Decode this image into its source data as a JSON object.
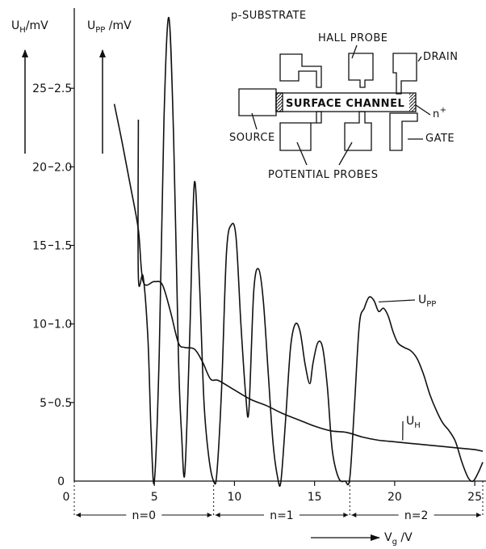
{
  "chart_data": {
    "type": "line",
    "xlabel": "V",
    "xlabel_sub": "g",
    "xlabel_unit": " /V",
    "ylabel_left": "U",
    "ylabel_left_sub": "H",
    "ylabel_left_unit": "/mV",
    "ylabel_right": "U",
    "ylabel_right_sub": "PP",
    "ylabel_right_unit": " /mV",
    "x_ticks": [
      "0",
      "5",
      "10",
      "15",
      "20",
      "25"
    ],
    "y_ticks_uh": [
      "0",
      "5",
      "10",
      "15",
      "20",
      "25"
    ],
    "y_ticks_upp": [
      "0.5",
      "1.0",
      "1.5",
      "2.0",
      "2.5"
    ],
    "xlim": [
      0,
      25.5
    ],
    "ylim_uh": [
      0,
      30
    ],
    "ylim_upp": [
      0,
      3.0
    ],
    "grid": false,
    "landau_levels": [
      {
        "label": "n=0",
        "x_range": [
          0,
          8.7
        ]
      },
      {
        "label": "n=1",
        "x_range": [
          8.7,
          17.2
        ]
      },
      {
        "label": "n=2",
        "x_range": [
          17.2,
          25.5
        ]
      }
    ],
    "series": [
      {
        "name": "U",
        "name_sub": "H",
        "axis": "UH (mV)",
        "x": [
          2.5,
          3.0,
          3.5,
          4.0,
          4.3,
          5.0,
          5.5,
          6.0,
          6.5,
          6.9,
          7.5,
          8.0,
          8.5,
          9.0,
          10.0,
          11.0,
          12.0,
          13.0,
          14.0,
          15.0,
          16.0,
          17.0,
          18.0,
          19.0,
          20.0,
          21.0,
          22.0,
          23.0,
          24.0,
          25.0,
          25.5
        ],
        "values": [
          24.0,
          21.5,
          18.8,
          16.0,
          12.7,
          12.7,
          12.5,
          10.8,
          8.8,
          8.5,
          8.4,
          7.6,
          6.5,
          6.4,
          5.8,
          5.2,
          4.8,
          4.3,
          3.9,
          3.5,
          3.2,
          3.1,
          2.8,
          2.6,
          2.5,
          2.4,
          2.3,
          2.2,
          2.1,
          2.0,
          1.9
        ]
      },
      {
        "name": "U",
        "name_sub": "PP",
        "axis": "UPP (mV)",
        "x": [
          4.0,
          4.0,
          4.3,
          4.6,
          4.8,
          5.0,
          5.3,
          5.6,
          5.9,
          6.2,
          6.5,
          6.7,
          6.9,
          7.2,
          7.5,
          7.8,
          8.1,
          8.4,
          8.7,
          8.9,
          9.2,
          9.5,
          9.8,
          10.1,
          10.4,
          10.7,
          10.9,
          11.2,
          11.5,
          11.8,
          12.1,
          12.4,
          12.7,
          12.9,
          13.2,
          13.5,
          13.8,
          14.1,
          14.4,
          14.7,
          14.9,
          15.2,
          15.5,
          15.8,
          16.1,
          16.5,
          16.9,
          17.2,
          17.5,
          17.8,
          18.1,
          18.4,
          18.7,
          19.0,
          19.3,
          19.6,
          19.9,
          20.2,
          20.6,
          21.0,
          21.4,
          21.8,
          22.2,
          22.6,
          23.0,
          23.4,
          23.8,
          24.2,
          24.6,
          24.9,
          25.2,
          25.5
        ],
        "values": [
          2.3,
          1.3,
          1.3,
          0.9,
          0.3,
          0.0,
          0.8,
          2.3,
          2.95,
          2.2,
          0.8,
          0.3,
          0.05,
          0.9,
          1.9,
          1.3,
          0.5,
          0.15,
          0.0,
          0.05,
          0.6,
          1.45,
          1.63,
          1.55,
          1.0,
          0.55,
          0.45,
          1.2,
          1.35,
          1.15,
          0.7,
          0.25,
          0.02,
          0.0,
          0.4,
          0.85,
          1.0,
          0.95,
          0.75,
          0.62,
          0.75,
          0.88,
          0.85,
          0.6,
          0.2,
          0.02,
          0.0,
          0.02,
          0.5,
          1.0,
          1.1,
          1.17,
          1.15,
          1.08,
          1.1,
          1.05,
          0.95,
          0.88,
          0.85,
          0.83,
          0.78,
          0.68,
          0.55,
          0.45,
          0.37,
          0.32,
          0.25,
          0.12,
          0.02,
          0.0,
          0.05,
          0.12
        ]
      }
    ]
  },
  "inset": {
    "title": "p-SUBSTRATE",
    "hall_probe": "HALL PROBE",
    "drain": "DRAIN",
    "channel": "SURFACE CHANNEL",
    "n_plus": "n",
    "n_plus_sup": "+",
    "source": "SOURCE",
    "gate": "GATE",
    "potential_probes": "POTENTIAL PROBES"
  }
}
